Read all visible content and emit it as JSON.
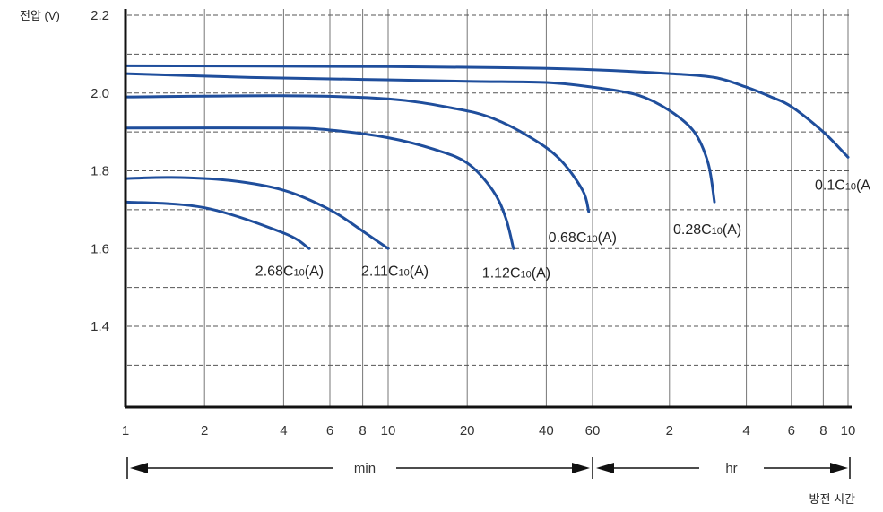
{
  "chart_data": {
    "type": "line",
    "ylabel": "전압 (V)",
    "xlabel": "방전 시간",
    "y_ticks": [
      "2.2",
      "2.0",
      "1.8",
      "1.6",
      "1.4"
    ],
    "y_range": [
      1.2,
      2.2
    ],
    "x_ticks_min": [
      "1",
      "2",
      "4",
      "6",
      "8",
      "10",
      "20",
      "40",
      "60"
    ],
    "x_ticks_hr": [
      "2",
      "4",
      "6",
      "8",
      "10"
    ],
    "x_scale": "log",
    "x_range_minutes": [
      1,
      600
    ],
    "range_labels": {
      "min": "min",
      "hr": "hr"
    },
    "grid": "vertical solid, horizontal dashed",
    "line_color": "#1f4e9c",
    "series": [
      {
        "name": "2.68C10(A)",
        "label_main": "2.68C",
        "label_sub": "10",
        "label_tail": "(A)",
        "points": [
          [
            1,
            1.72
          ],
          [
            2,
            1.705
          ],
          [
            4,
            1.64
          ],
          [
            5,
            1.6
          ]
        ]
      },
      {
        "name": "2.11C10(A)",
        "label_main": "2.11C",
        "label_sub": "10",
        "label_tail": "(A)",
        "points": [
          [
            1,
            1.78
          ],
          [
            1.5,
            1.783
          ],
          [
            2.5,
            1.775
          ],
          [
            4,
            1.75
          ],
          [
            6,
            1.7
          ],
          [
            8,
            1.645
          ],
          [
            10,
            1.6
          ]
        ]
      },
      {
        "name": "1.12C10(A)",
        "label_main": "1.12C",
        "label_sub": "10",
        "label_tail": "(A)",
        "points": [
          [
            1,
            1.91
          ],
          [
            4,
            1.91
          ],
          [
            6,
            1.905
          ],
          [
            10,
            1.885
          ],
          [
            15,
            1.855
          ],
          [
            20,
            1.82
          ],
          [
            25,
            1.75
          ],
          [
            28,
            1.68
          ],
          [
            30,
            1.6
          ]
        ]
      },
      {
        "name": "0.68C10(A)",
        "label_main": "0.68C",
        "label_sub": "10",
        "label_tail": "(A)",
        "points": [
          [
            1,
            1.99
          ],
          [
            4,
            1.993
          ],
          [
            10,
            1.985
          ],
          [
            18,
            1.96
          ],
          [
            25,
            1.935
          ],
          [
            35,
            1.885
          ],
          [
            45,
            1.83
          ],
          [
            55,
            1.75
          ],
          [
            58,
            1.695
          ]
        ]
      },
      {
        "name": "0.28C10(A)",
        "label_main": "0.28C",
        "label_sub": "10",
        "label_tail": "(A)",
        "points": [
          [
            1,
            2.05
          ],
          [
            3,
            2.04
          ],
          [
            8,
            2.035
          ],
          [
            20,
            2.03
          ],
          [
            40,
            2.027
          ],
          [
            60,
            2.015
          ],
          [
            90,
            1.995
          ],
          [
            120,
            1.955
          ],
          [
            150,
            1.9
          ],
          [
            170,
            1.82
          ],
          [
            180,
            1.72
          ]
        ]
      },
      {
        "name": "0.1C10(A",
        "label_main": "0.1C",
        "label_sub": "10",
        "label_tail": "(A",
        "points": [
          [
            1,
            2.07
          ],
          [
            10,
            2.068
          ],
          [
            30,
            2.065
          ],
          [
            60,
            2.06
          ],
          [
            120,
            2.05
          ],
          [
            180,
            2.04
          ],
          [
            240,
            2.015
          ],
          [
            300,
            1.99
          ],
          [
            360,
            1.965
          ],
          [
            480,
            1.9
          ],
          [
            600,
            1.835
          ]
        ]
      }
    ]
  }
}
